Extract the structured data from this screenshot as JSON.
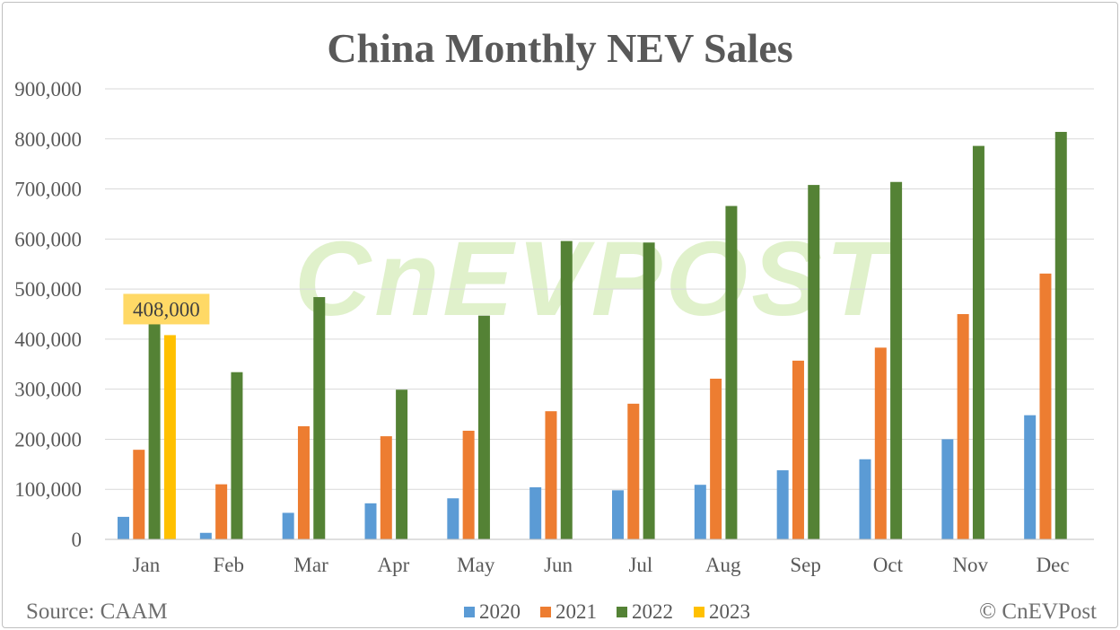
{
  "colors": {
    "2020": "#5b9bd5",
    "2021": "#ed7d31",
    "2022": "#548235",
    "2023": "#ffc000",
    "callout_bg": "#ffd966"
  },
  "source": "Source: CAAM",
  "copyright": "© CnEVPost",
  "watermark": "CnEVPOST",
  "chart_data": {
    "type": "bar",
    "title": "China Monthly NEV Sales",
    "xlabel": "",
    "ylabel": "",
    "ylim": [
      0,
      900000
    ],
    "y_ticks": [
      "900,000",
      "800,000",
      "700,000",
      "600,000",
      "500,000",
      "400,000",
      "300,000",
      "200,000",
      "100,000",
      "0"
    ],
    "grid": true,
    "legend_position": "bottom",
    "categories": [
      "Jan",
      "Feb",
      "Mar",
      "Apr",
      "May",
      "Jun",
      "Jul",
      "Aug",
      "Sep",
      "Oct",
      "Nov",
      "Dec"
    ],
    "series": [
      {
        "name": "2020",
        "values": [
          45000,
          13000,
          53000,
          72000,
          82000,
          104000,
          98000,
          109000,
          138000,
          160000,
          200000,
          248000
        ]
      },
      {
        "name": "2021",
        "values": [
          179000,
          110000,
          226000,
          206000,
          217000,
          256000,
          271000,
          321000,
          357000,
          383000,
          450000,
          531000
        ]
      },
      {
        "name": "2022",
        "values": [
          431000,
          334000,
          484000,
          299000,
          447000,
          596000,
          593000,
          666000,
          708000,
          714000,
          786000,
          814000
        ]
      },
      {
        "name": "2023",
        "values": [
          408000,
          null,
          null,
          null,
          null,
          null,
          null,
          null,
          null,
          null,
          null,
          null
        ]
      }
    ],
    "annotations": [
      {
        "text": "408,000",
        "category": "Jan",
        "series": "2023"
      }
    ]
  }
}
